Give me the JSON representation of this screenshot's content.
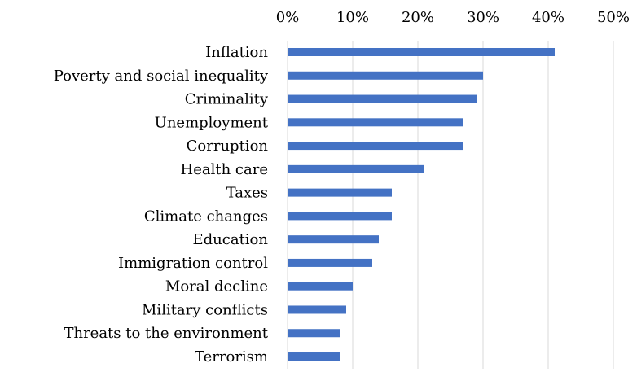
{
  "chart_data": {
    "type": "bar",
    "orientation": "horizontal",
    "categories": [
      "Inflation",
      "Poverty and social inequality",
      "Criminality",
      "Unemployment",
      "Corruption",
      "Health care",
      "Taxes",
      "Climate changes",
      "Education",
      "Immigration control",
      "Moral decline",
      "Military conflicts",
      "Threats to the environment",
      "Terrorism"
    ],
    "values": [
      0.41,
      0.3,
      0.29,
      0.27,
      0.27,
      0.21,
      0.16,
      0.16,
      0.14,
      0.13,
      0.1,
      0.09,
      0.08,
      0.08
    ],
    "xlim": [
      0,
      0.5
    ],
    "x_ticks": [
      "0%",
      "10%",
      "20%",
      "30%",
      "40%",
      "50%"
    ],
    "x_axis_position": "top",
    "grid": "vertical",
    "title": "",
    "xlabel": "",
    "ylabel": "",
    "colors": {
      "bar": "#4472C4",
      "grid": "#D9D9D9",
      "text": "#000000"
    }
  }
}
